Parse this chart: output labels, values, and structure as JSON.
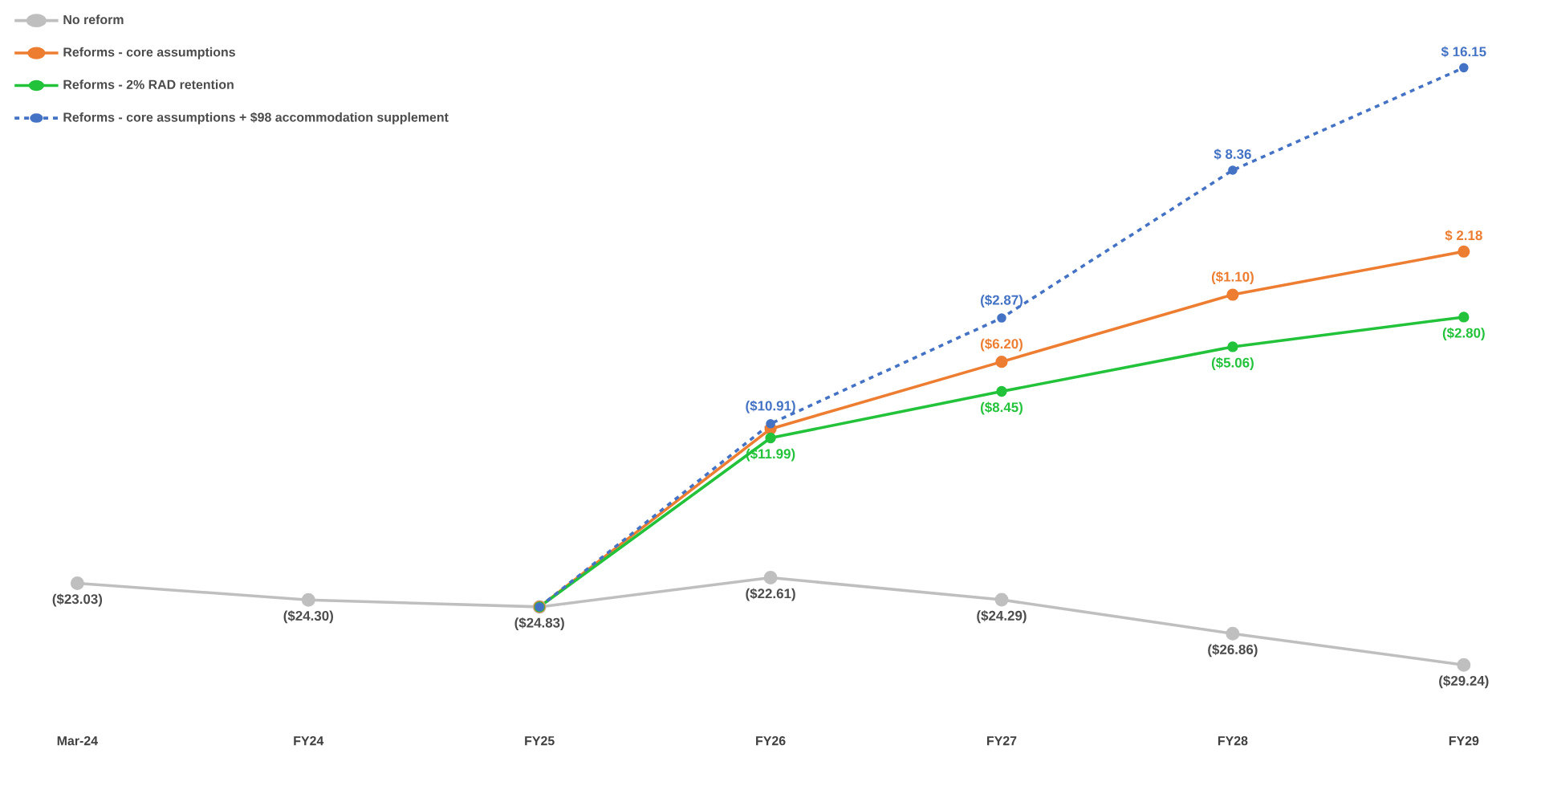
{
  "chart_data": {
    "type": "line",
    "categories": [
      "Mar-24",
      "FY24",
      "FY25",
      "FY26",
      "FY27",
      "FY28",
      "FY29"
    ],
    "legend": "top left",
    "marker": "circle",
    "series": [
      {
        "name": "No reform",
        "color": "#bfbfbf",
        "line_style": "solid",
        "values": [
          -23.03,
          -24.3,
          -24.83,
          -22.61,
          -24.29,
          -26.86,
          -29.24
        ],
        "value_labels": [
          "($23.03)",
          "($24.30)",
          "($24.83)",
          "($22.61)",
          "($24.29)",
          "($26.86)",
          "($29.24)"
        ]
      },
      {
        "name": "Reforms - core assumptions",
        "color": "#ed7d31",
        "line_style": "solid",
        "values": [
          null,
          null,
          -24.83,
          -11.3,
          -6.2,
          -1.1,
          2.18
        ],
        "value_labels": [
          null,
          null,
          null,
          null,
          "($6.20)",
          "($1.10)",
          "$ 2.18"
        ]
      },
      {
        "name": "Reforms - 2% RAD retention",
        "color": "#22c33a",
        "line_style": "solid",
        "values": [
          null,
          null,
          -24.83,
          -11.99,
          -8.45,
          -5.06,
          -2.8
        ],
        "value_labels": [
          null,
          null,
          null,
          "($11.99)",
          "($8.45)",
          "($5.06)",
          "($2.80)"
        ]
      },
      {
        "name": "Reforms - core assumptions + $98 accommodation supplement",
        "color": "#4472c4",
        "line_style": "dashed",
        "values": [
          null,
          null,
          -24.83,
          -10.91,
          -2.87,
          8.36,
          16.15
        ],
        "value_labels": [
          null,
          null,
          null,
          "($10.91)",
          "($2.87)",
          "$ 8.36",
          "$ 16.15"
        ]
      }
    ]
  }
}
